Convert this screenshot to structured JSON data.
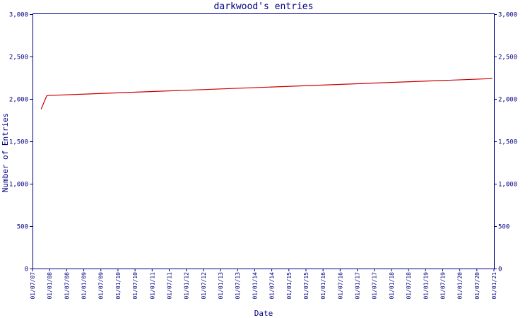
{
  "chart_data": {
    "type": "line",
    "title": "darkwood's entries",
    "xlabel": "Date",
    "ylabel": "Number of Entries",
    "ylim": [
      0,
      3000
    ],
    "y_ticks": [
      "0",
      "500",
      "1,000",
      "1,500",
      "2,000",
      "2,500",
      "3,000"
    ],
    "y_tick_values": [
      0,
      500,
      1000,
      1500,
      2000,
      2500,
      3000
    ],
    "x_ticks": [
      "01/07/07",
      "01/01/08",
      "01/07/08",
      "01/01/09",
      "01/07/09",
      "01/01/10",
      "01/07/10",
      "01/01/11",
      "01/07/11",
      "01/01/12",
      "01/07/12",
      "01/01/13",
      "01/07/13",
      "01/01/14",
      "01/07/14",
      "01/01/15",
      "01/07/15",
      "01/01/16",
      "01/07/16",
      "01/01/17",
      "01/07/17",
      "01/01/18",
      "01/07/18",
      "01/01/19",
      "01/07/19",
      "01/01/20",
      "01/07/20",
      "01/01/21"
    ],
    "xlim": [
      "2007-07-01",
      "2021-01-01"
    ],
    "grid": false,
    "right_axis": true,
    "line_color": "#cc0000",
    "axis_color": "#000080",
    "series": [
      {
        "x": [
          "2007-10-01",
          "2007-12-01",
          "2020-12-15"
        ],
        "y": [
          1880,
          2040,
          2240
        ]
      }
    ]
  }
}
